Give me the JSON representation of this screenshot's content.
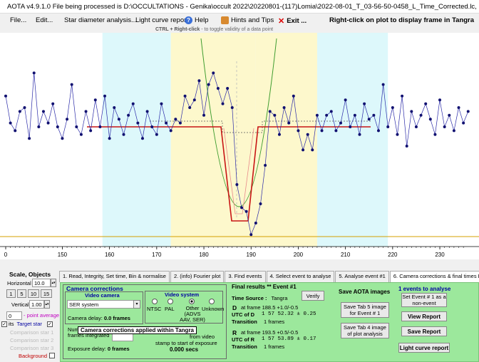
{
  "window": {
    "title": "AOTA v4.9.1.0   File being processed is D:\\OCCULTATIONS - Genika\\occult 2022\\20220801-(117)Lomia\\2022-08-01_T_03-56-50-0458_L_Time_Corrected.lc, measured with Tangra"
  },
  "menu": {
    "file": "File...",
    "edit": "Edit...",
    "star_diameter": "Star diameter analysis...",
    "light_curve_report": "Light curve report",
    "help": "Help",
    "hints": "Hints and Tips",
    "exit": "Exit ...",
    "right_click_hint": "Right-click on plot to display frame in Tangra"
  },
  "hint": {
    "keys": "CTRL + Right-click",
    "text": "  -  to toggle validity of a data point"
  },
  "plot": {
    "x_ticks": [
      "0",
      "150",
      "160",
      "170",
      "180",
      "190",
      "200",
      "210",
      "220",
      "230"
    ],
    "bands": {
      "cyan": [
        [
          158.5,
          173
        ],
        [
          191,
          204
        ],
        [
          204,
          219
        ]
      ],
      "yellow": [
        [
          173,
          191
        ],
        [
          191,
          204
        ]
      ]
    }
  },
  "chart_data": {
    "type": "line",
    "xlim": [
      138,
      236
    ],
    "x": [
      138,
      139,
      140,
      141,
      142,
      143,
      144,
      145,
      146,
      147,
      148,
      149,
      150,
      151,
      152,
      153,
      154,
      155,
      156,
      157,
      158,
      159,
      160,
      161,
      162,
      163,
      164,
      165,
      166,
      167,
      168,
      169,
      170,
      171,
      172,
      173,
      174,
      175,
      176,
      177,
      178,
      179,
      180,
      181,
      182,
      183,
      184,
      185,
      186,
      187,
      188,
      189,
      190,
      191,
      192,
      193,
      194,
      195,
      196,
      197,
      198,
      199,
      200,
      201,
      202,
      203,
      204,
      205,
      206,
      207,
      208,
      209,
      210,
      211,
      212,
      213,
      214,
      215,
      216,
      217,
      218,
      219,
      220,
      221,
      222,
      223,
      224,
      225,
      226,
      227,
      228,
      229,
      230,
      231,
      232,
      233,
      234,
      235,
      236
    ],
    "y": [
      0.66,
      0.52,
      0.48,
      0.58,
      0.6,
      0.44,
      0.78,
      0.5,
      0.58,
      0.52,
      0.62,
      0.5,
      0.44,
      0.54,
      0.72,
      0.5,
      0.46,
      0.58,
      0.48,
      0.64,
      0.5,
      0.66,
      0.44,
      0.6,
      0.54,
      0.46,
      0.56,
      0.62,
      0.52,
      0.44,
      0.58,
      0.5,
      0.46,
      0.62,
      0.52,
      0.48,
      0.54,
      0.52,
      0.66,
      0.6,
      0.64,
      0.74,
      0.56,
      0.72,
      0.78,
      0.7,
      0.62,
      0.7,
      0.6,
      0.2,
      0.08,
      0.06,
      -0.06,
      0.0,
      0.1,
      0.3,
      0.58,
      0.56,
      0.46,
      0.6,
      0.52,
      0.66,
      0.48,
      0.38,
      0.46,
      0.38,
      0.56,
      0.48,
      0.56,
      0.58,
      0.48,
      0.52,
      0.64,
      0.5,
      0.56,
      0.46,
      0.62,
      0.54,
      0.56,
      0.48,
      0.72,
      0.5,
      0.6,
      0.46,
      0.66,
      0.4,
      0.58,
      0.5,
      0.56,
      0.62,
      0.54,
      0.46,
      0.64,
      0.5,
      0.56,
      0.48,
      0.6,
      0.52,
      0.58
    ]
  },
  "tabs": [
    "1. Read, Integrity, Set time, Bin & normalise",
    "2. (info) Fourier plot",
    "3. Find events",
    "4. Select event to analyse",
    "5. Analyse event #1",
    "6. Camera corrections & final times Event #1"
  ],
  "left": {
    "scale_title": "Scale,  Objects",
    "horizontal_label": "Horizontal",
    "horizontal_value": "10.0",
    "scale_buttons": [
      "1",
      "5",
      "10",
      "15"
    ],
    "vertical_label": "Vertical",
    "vertical_value": "1.00",
    "dropdown_value": "0",
    "point_average": "- point average",
    "target_star": "Target star",
    "its": "its",
    "comparison1": "Comparison star 1",
    "comparison2": "Comparison star 2",
    "comparison3": "Comparison star 3",
    "background": "Background"
  },
  "camera": {
    "title": "Camera corrections",
    "video_camera": "Video camera",
    "camera_value": "SER system",
    "camera_delay_label": "Camera delay: ",
    "camera_delay_value": "0.0 frames",
    "video_system": "Video system",
    "ntsc": "NTSC",
    "pal": "PAL",
    "other": "Other (ADVS AAV, SER)",
    "unknown": "Unknown",
    "tooltip": "Camera corrections applied within Tangra",
    "num_label": "Num",
    "frames_integrated": "frames integrated",
    "from_video": "from video",
    "stamp_text": "stamp to start of exposure",
    "exposure_label": "Exposure delay: ",
    "exposure_value": "0 frames",
    "secs_value": "0.000 secs"
  },
  "final": {
    "title": "Final results  **  Event #1",
    "time_source_label": "Time Source :",
    "time_source_value": "Tangra",
    "verify": "Verify",
    "d_label": "D",
    "d_frame": "at frame 188.5 +1.0/-0.5",
    "utc_d_label": "UTC of D",
    "utc_d_value": "1  57 52.32  ± 0.25",
    "transition_label": "Transition",
    "transition_d_value": "1 frames",
    "r_label": "R",
    "r_frame": "at frame 193.5 +0.5/-0.5",
    "utc_r_label": "UTC of R",
    "utc_r_value": "1  57 53.89  ± 0.17",
    "transition_r_value": "1 frames"
  },
  "save": {
    "title": "Save AOTA images",
    "tab5": "Save Tab 5 image for Event # 1",
    "tab4": "Save Tab 4 image of plot analysis"
  },
  "events": {
    "title": "1  events to analyse",
    "set_event": "Set Event # 1 as a non-event",
    "view_report": "View Report",
    "save_report": "Save Report",
    "light_curve_report": "Light curve report"
  }
}
